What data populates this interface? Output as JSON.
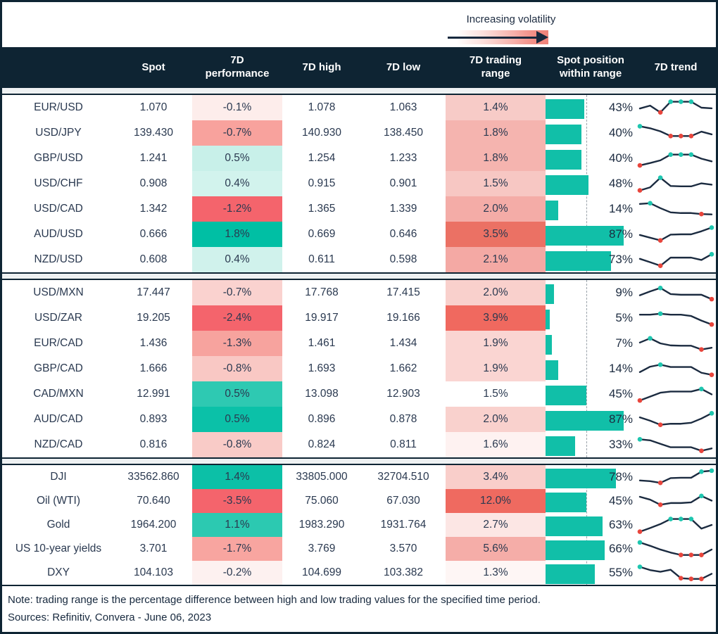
{
  "legend": {
    "label": "Increasing volatility"
  },
  "header": {
    "columns": [
      "",
      "Spot",
      "7D\nperformance",
      "7D high",
      "7D low",
      "7D trading\nrange",
      "Spot position\nwithin range",
      "7D trend"
    ]
  },
  "colors": {
    "header_bg": "#0e2433",
    "bar_teal": "#11bfa8",
    "dot_teal": "#1ec6af",
    "dot_red": "#e8453c",
    "spark_line": "#1b2b40",
    "strong_teal": "#00bfa4",
    "strong_red": "#f4646c"
  },
  "chart_data": {
    "type": "table",
    "title": "7D FX and markets volatility dashboard",
    "columns": [
      "Spot",
      "7D performance",
      "7D high",
      "7D low",
      "7D trading range",
      "Spot position within range",
      "7D trend"
    ],
    "blocks": [
      {
        "rows": [
          {
            "label": "EUR/USD",
            "spot": "1.070",
            "perf": "-0.1%",
            "perf_color": "#fdedeb",
            "high": "1.078",
            "low": "1.063",
            "range": "1.4%",
            "range_color": "#f7cbc7",
            "position_pct": 43,
            "position_label": "43%",
            "spark": {
              "values": [
                45,
                62,
                22,
                85,
                85,
                85,
                50,
                46
              ],
              "teal": [
                3,
                4,
                5
              ],
              "red": [
                2
              ]
            }
          },
          {
            "label": "USD/JPY",
            "spot": "139.430",
            "perf": "-0.7%",
            "perf_color": "#f8a29d",
            "high": "140.930",
            "low": "138.450",
            "range": "1.8%",
            "range_color": "#f5b4af",
            "position_pct": 40,
            "position_label": "40%",
            "spark": {
              "values": [
                90,
                78,
                60,
                32,
                32,
                32,
                58,
                42
              ],
              "teal": [
                0
              ],
              "red": [
                3,
                4,
                5
              ]
            }
          },
          {
            "label": "GBP/USD",
            "spot": "1.241",
            "perf": "0.5%",
            "perf_color": "#c8f0e9",
            "high": "1.254",
            "low": "1.233",
            "range": "1.8%",
            "range_color": "#f5b4af",
            "position_pct": 40,
            "position_label": "40%",
            "spark": {
              "values": [
                8,
                22,
                38,
                72,
                72,
                72,
                48,
                32
              ],
              "teal": [
                3,
                4,
                5
              ],
              "red": [
                0
              ]
            }
          },
          {
            "label": "USD/CHF",
            "spot": "0.908",
            "perf": "0.4%",
            "perf_color": "#d2f3ed",
            "high": "0.915",
            "low": "0.901",
            "range": "1.5%",
            "range_color": "#f7c7c3",
            "position_pct": 48,
            "position_label": "48%",
            "spark": {
              "values": [
                10,
                28,
                85,
                36,
                34,
                34,
                52,
                44
              ],
              "teal": [
                2
              ],
              "red": [
                0
              ]
            }
          },
          {
            "label": "USD/CAD",
            "spot": "1.342",
            "perf": "-1.2%",
            "perf_color": "#f4646c",
            "high": "1.365",
            "low": "1.339",
            "range": "2.0%",
            "range_color": "#f4aca7",
            "position_pct": 14,
            "position_label": "14%",
            "spark": {
              "values": [
                80,
                84,
                55,
                30,
                26,
                26,
                20,
                18
              ],
              "teal": [
                1
              ],
              "red": [
                6
              ]
            }
          },
          {
            "label": "AUD/USD",
            "spot": "0.666",
            "perf": "1.8%",
            "perf_color": "#00bfa4",
            "high": "0.669",
            "low": "0.646",
            "range": "3.5%",
            "range_color": "#eb7164",
            "position_pct": 87,
            "position_label": "87%",
            "spark": {
              "values": [
                46,
                30,
                14,
                48,
                50,
                50,
                68,
                90
              ],
              "teal": [
                7
              ],
              "red": [
                2
              ]
            }
          },
          {
            "label": "NZD/USD",
            "spot": "0.608",
            "perf": "0.4%",
            "perf_color": "#d0f2ec",
            "high": "0.611",
            "low": "0.598",
            "range": "2.1%",
            "range_color": "#f4a9a4",
            "position_pct": 73,
            "position_label": "73%",
            "spark": {
              "values": [
                55,
                35,
                14,
                62,
                62,
                62,
                48,
                82
              ],
              "teal": [
                7
              ],
              "red": [
                2
              ]
            }
          }
        ]
      },
      {
        "rows": [
          {
            "label": "USD/MXN",
            "spot": "17.447",
            "perf": "-0.7%",
            "perf_color": "#fad2cf",
            "high": "17.768",
            "low": "17.415",
            "range": "2.0%",
            "range_color": "#f9d0cc",
            "position_pct": 9,
            "position_label": "9%",
            "spark": {
              "values": [
                35,
                58,
                78,
                42,
                38,
                38,
                38,
                12
              ],
              "teal": [
                2
              ],
              "red": [
                7
              ]
            }
          },
          {
            "label": "USD/ZAR",
            "spot": "19.205",
            "perf": "-2.4%",
            "perf_color": "#f4646c",
            "high": "19.917",
            "low": "19.166",
            "range": "3.9%",
            "range_color": "#f0695f",
            "position_pct": 5,
            "position_label": "5%",
            "spark": {
              "values": [
                70,
                70,
                76,
                70,
                70,
                62,
                35,
                12
              ],
              "teal": [
                2
              ],
              "red": [
                7
              ]
            }
          },
          {
            "label": "EUR/CAD",
            "spot": "1.436",
            "perf": "-1.3%",
            "perf_color": "#f7a39e",
            "high": "1.461",
            "low": "1.434",
            "range": "1.9%",
            "range_color": "#fad5d2",
            "position_pct": 7,
            "position_label": "7%",
            "spark": {
              "values": [
                55,
                80,
                50,
                38,
                36,
                36,
                14,
                24
              ],
              "teal": [
                1
              ],
              "red": [
                6
              ]
            }
          },
          {
            "label": "GBP/CAD",
            "spot": "1.666",
            "perf": "-0.8%",
            "perf_color": "#f9c8c4",
            "high": "1.693",
            "low": "1.662",
            "range": "1.9%",
            "range_color": "#fad5d2",
            "position_pct": 14,
            "position_label": "14%",
            "spark": {
              "values": [
                30,
                62,
                74,
                60,
                60,
                60,
                26,
                14
              ],
              "teal": [
                2
              ],
              "red": [
                7
              ]
            }
          },
          {
            "label": "CAD/MXN",
            "spot": "12.991",
            "perf": "0.5%",
            "perf_color": "#2ec9b2",
            "high": "13.098",
            "low": "12.903",
            "range": "1.5%",
            "range_color": "#ffffff",
            "position_pct": 45,
            "position_label": "45%",
            "spark": {
              "values": [
                12,
                35,
                58,
                65,
                65,
                65,
                80,
                48
              ],
              "teal": [
                6
              ],
              "red": [
                0
              ]
            }
          },
          {
            "label": "AUD/CAD",
            "spot": "0.893",
            "perf": "0.5%",
            "perf_color": "#0bc1a8",
            "high": "0.896",
            "low": "0.878",
            "range": "2.0%",
            "range_color": "#f9d1cd",
            "position_pct": 87,
            "position_label": "87%",
            "spark": {
              "values": [
                62,
                42,
                18,
                24,
                24,
                30,
                55,
                86
              ],
              "teal": [
                7
              ],
              "red": [
                2
              ]
            }
          },
          {
            "label": "NZD/CAD",
            "spot": "0.816",
            "perf": "-0.8%",
            "perf_color": "#f9cbc7",
            "high": "0.824",
            "low": "0.811",
            "range": "1.6%",
            "range_color": "#fef2f1",
            "position_pct": 33,
            "position_label": "33%",
            "spark": {
              "values": [
                82,
                76,
                55,
                35,
                35,
                35,
                14,
                28
              ],
              "teal": [
                0
              ],
              "red": [
                6
              ]
            }
          }
        ]
      },
      {
        "rows": [
          {
            "label": "DJI",
            "spot": "33562.860",
            "perf": "1.4%",
            "perf_color": "#0cc0a7",
            "high": "33805.000",
            "low": "32704.510",
            "range": "3.4%",
            "range_color": "#f9ceca",
            "position_pct": 78,
            "position_label": "78%",
            "spark": {
              "values": [
                30,
                26,
                16,
                44,
                46,
                46,
                82,
                88
              ],
              "teal": [
                6,
                7
              ],
              "red": [
                2
              ]
            }
          },
          {
            "label": "Oil (WTI)",
            "spot": "70.640",
            "perf": "-3.5%",
            "perf_color": "#f4646c",
            "high": "75.060",
            "low": "67.030",
            "range": "12.0%",
            "range_color": "#ef6a60",
            "position_pct": 45,
            "position_label": "45%",
            "spark": {
              "values": [
                75,
                58,
                28,
                38,
                38,
                42,
                80,
                52
              ],
              "teal": [
                6
              ],
              "red": [
                2
              ]
            }
          },
          {
            "label": "Gold",
            "spot": "1964.200",
            "perf": "1.1%",
            "perf_color": "#2cc9b1",
            "high": "1983.290",
            "low": "1931.764",
            "range": "2.7%",
            "range_color": "#fce6e4",
            "position_pct": 63,
            "position_label": "63%",
            "spark": {
              "values": [
                10,
                32,
                55,
                85,
                85,
                85,
                28,
                50
              ],
              "teal": [
                3,
                4,
                5
              ],
              "red": [
                0
              ]
            }
          },
          {
            "label": "US 10-year yields",
            "spot": "3.701",
            "perf": "-1.7%",
            "perf_color": "#f8a5a0",
            "high": "3.769",
            "low": "3.570",
            "range": "5.6%",
            "range_color": "#f5ada8",
            "position_pct": 66,
            "position_label": "66%",
            "spark": {
              "values": [
                88,
                68,
                46,
                28,
                14,
                14,
                14,
                46
              ],
              "teal": [
                0
              ],
              "red": [
                4,
                5,
                6
              ]
            }
          },
          {
            "label": "DXY",
            "spot": "104.103",
            "perf": "-0.2%",
            "perf_color": "#fdf1f0",
            "high": "104.699",
            "low": "103.382",
            "range": "1.3%",
            "range_color": "#fef6f5",
            "position_pct": 55,
            "position_label": "55%",
            "spark": {
              "values": [
                85,
                66,
                56,
                68,
                18,
                14,
                14,
                44
              ],
              "teal": [
                0
              ],
              "red": [
                4,
                5,
                6
              ]
            }
          }
        ]
      }
    ]
  },
  "footer": {
    "note": "Note: trading range is the percentage difference between high and low trading values for the specified time period.",
    "sources": "Sources: Refinitiv, Convera - June 06, 2023"
  }
}
